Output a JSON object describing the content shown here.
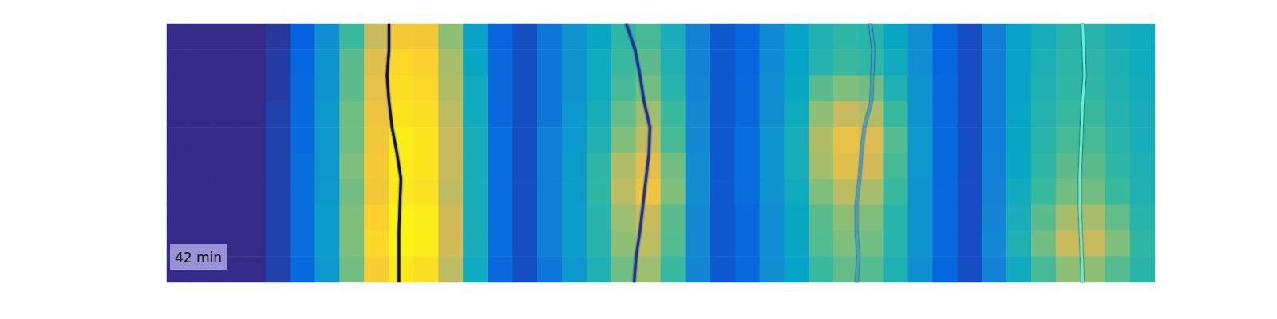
{
  "chart_data": {
    "type": "heatmap",
    "annotation": "42 min",
    "tick_labels": false,
    "xlim": [
      0,
      100
    ],
    "ylim": [
      0,
      100
    ],
    "color_range": [
      0,
      100
    ],
    "cells": [
      [
        0,
        0,
        0,
        0,
        3,
        12,
        28,
        50,
        72,
        85,
        84,
        62,
        35,
        14,
        8,
        20,
        30,
        38,
        48,
        52,
        42,
        24,
        10,
        14,
        26,
        36,
        44,
        48,
        46,
        38,
        28,
        14,
        8,
        22,
        36,
        42,
        46,
        46,
        42,
        40
      ],
      [
        0,
        0,
        0,
        0,
        4,
        14,
        30,
        55,
        78,
        90,
        88,
        66,
        38,
        15,
        8,
        20,
        30,
        40,
        50,
        55,
        44,
        24,
        10,
        14,
        26,
        36,
        45,
        50,
        48,
        40,
        28,
        14,
        8,
        22,
        36,
        43,
        47,
        47,
        43,
        40
      ],
      [
        0,
        0,
        0,
        0,
        4,
        15,
        30,
        55,
        80,
        92,
        90,
        68,
        40,
        15,
        8,
        20,
        30,
        40,
        52,
        58,
        46,
        25,
        10,
        15,
        28,
        38,
        55,
        60,
        58,
        44,
        30,
        15,
        8,
        22,
        36,
        44,
        48,
        48,
        44,
        41
      ],
      [
        0,
        0,
        0,
        0,
        5,
        15,
        32,
        58,
        82,
        94,
        92,
        70,
        40,
        15,
        8,
        20,
        32,
        42,
        56,
        65,
        50,
        26,
        10,
        15,
        28,
        40,
        62,
        72,
        68,
        50,
        30,
        15,
        8,
        22,
        37,
        45,
        50,
        50,
        45,
        42
      ],
      [
        0,
        0,
        0,
        0,
        5,
        15,
        32,
        58,
        84,
        96,
        94,
        72,
        42,
        16,
        8,
        22,
        32,
        44,
        60,
        70,
        52,
        26,
        10,
        16,
        30,
        42,
        68,
        80,
        76,
        54,
        32,
        15,
        8,
        22,
        38,
        46,
        52,
        52,
        46,
        42
      ],
      [
        0,
        0,
        0,
        0,
        5,
        16,
        32,
        60,
        85,
        96,
        94,
        72,
        42,
        16,
        8,
        22,
        34,
        48,
        68,
        78,
        58,
        28,
        10,
        16,
        30,
        42,
        66,
        78,
        74,
        52,
        32,
        15,
        8,
        23,
        38,
        48,
        55,
        55,
        48,
        43
      ],
      [
        0,
        0,
        0,
        0,
        5,
        16,
        32,
        58,
        84,
        95,
        93,
        70,
        42,
        16,
        8,
        22,
        34,
        48,
        70,
        82,
        60,
        28,
        10,
        16,
        30,
        40,
        60,
        70,
        66,
        50,
        30,
        15,
        8,
        24,
        40,
        50,
        58,
        58,
        50,
        44
      ],
      [
        0,
        0,
        0,
        0,
        5,
        16,
        34,
        60,
        88,
        98,
        96,
        74,
        42,
        16,
        8,
        22,
        34,
        46,
        64,
        72,
        55,
        26,
        10,
        15,
        28,
        38,
        55,
        62,
        60,
        46,
        30,
        15,
        8,
        25,
        42,
        55,
        66,
        66,
        56,
        46
      ],
      [
        0,
        0,
        0,
        0,
        5,
        16,
        34,
        60,
        90,
        98,
        96,
        74,
        42,
        16,
        8,
        22,
        34,
        46,
        62,
        70,
        54,
        26,
        10,
        15,
        28,
        38,
        54,
        60,
        58,
        46,
        30,
        15,
        8,
        26,
        44,
        58,
        72,
        72,
        60,
        48
      ],
      [
        0,
        0,
        0,
        0,
        5,
        15,
        32,
        58,
        86,
        95,
        92,
        70,
        40,
        15,
        8,
        20,
        32,
        44,
        58,
        64,
        50,
        25,
        10,
        15,
        28,
        36,
        50,
        56,
        54,
        44,
        28,
        14,
        8,
        24,
        40,
        52,
        62,
        62,
        54,
        46
      ]
    ],
    "y": [
      0,
      10,
      20,
      30,
      40,
      50,
      60,
      70,
      80,
      90,
      100
    ],
    "series": [
      {
        "type": "line",
        "color": "#0b0b6e",
        "values": [
          22.5,
          22.5,
          22.3,
          22.5,
          22.8,
          23.3,
          23.7,
          23.6,
          23.5,
          23.5,
          23.5
        ]
      },
      {
        "type": "line",
        "color": "#1c2fae",
        "values": [
          46.5,
          47.4,
          47.9,
          48.3,
          48.9,
          48.8,
          48.5,
          48.2,
          47.9,
          47.5,
          47.3
        ]
      },
      {
        "type": "line",
        "color": "#3aa0de",
        "values": [
          71.2,
          71.5,
          71.4,
          71.3,
          70.6,
          70.3,
          70.1,
          69.8,
          69.8,
          70.0,
          69.8
        ]
      },
      {
        "type": "line",
        "color": "#5ff0e0",
        "values": [
          92.7,
          92.8,
          92.9,
          92.7,
          92.6,
          92.5,
          92.4,
          92.4,
          92.5,
          92.6,
          92.7
        ]
      }
    ]
  }
}
